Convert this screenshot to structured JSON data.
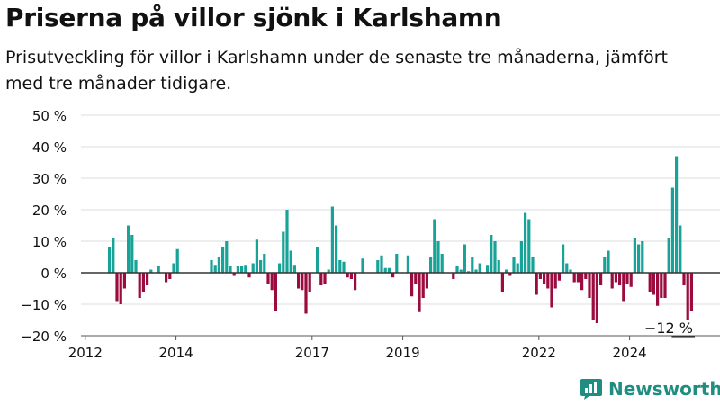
{
  "chart_data": {
    "type": "bar",
    "title": "Priserna på villor sjönk i Karlshamn",
    "subtitle": "Prisutveckling för villor i Karlshamn under de senaste tre månaderna, jämfört med tre månader tidigare.",
    "xlabel": "",
    "ylabel": "",
    "ylim": [
      -20,
      50
    ],
    "y_ticks": [
      -20,
      -10,
      0,
      10,
      20,
      30,
      40,
      50
    ],
    "y_tick_labels": [
      "−20 %",
      "−10 %",
      "0 %",
      "10 %",
      "20 %",
      "30 %",
      "40 %",
      "50 %"
    ],
    "x_tick_labels": [
      "2012",
      "2014",
      "2017",
      "2019",
      "2022",
      "2024"
    ],
    "x_tick_years": [
      2012,
      2014,
      2017,
      2019,
      2022,
      2024
    ],
    "x_start": "2012-07",
    "frequency": "monthly",
    "grid": true,
    "colors": {
      "positive": "#17a398",
      "negative": "#9b0b3d"
    },
    "values": [
      8,
      11,
      -9,
      -10,
      -5,
      15,
      12,
      4,
      -8,
      -6,
      -4,
      1,
      0,
      2,
      0,
      -3,
      -2,
      3,
      7.5,
      0,
      0,
      0,
      0,
      0,
      0,
      0,
      0,
      4,
      2.5,
      5,
      8,
      10,
      2,
      -1,
      2,
      2,
      2.5,
      -1.5,
      3,
      10.5,
      4,
      6,
      -3.5,
      -5.5,
      -12,
      3,
      13,
      20,
      7,
      2.5,
      -5,
      -5.5,
      -13,
      -6,
      0,
      8,
      -4,
      -3.5,
      1,
      21,
      15,
      4,
      3.5,
      -1.5,
      -2,
      -5.5,
      0,
      4.5,
      0,
      0,
      0,
      4,
      5.5,
      1.5,
      1.5,
      -1.5,
      6,
      0,
      0,
      5.5,
      -7.5,
      -3.5,
      -12.5,
      -8,
      -5,
      5,
      17,
      10,
      6,
      0,
      0,
      -2,
      2,
      1,
      9,
      0.5,
      5,
      1,
      3,
      0,
      2.5,
      12,
      10,
      4,
      -6,
      1,
      -1,
      5,
      3,
      10,
      19,
      17,
      5,
      -7,
      -2,
      -3.5,
      -5,
      -11,
      -5,
      -2.5,
      9,
      3,
      1,
      -3,
      -3,
      -5.5,
      -2,
      -8,
      -15,
      -16,
      -4,
      5,
      7,
      -5,
      -3,
      -4,
      -9,
      -3.5,
      -4.5,
      11,
      9,
      10,
      0,
      -6,
      -7,
      -10.5,
      -8,
      -8,
      11,
      27,
      37,
      15,
      -4,
      -15,
      -12
    ],
    "last_value_label": "−12 %"
  },
  "branding": {
    "name": "Newsworthy",
    "color": "#1f8d80"
  }
}
